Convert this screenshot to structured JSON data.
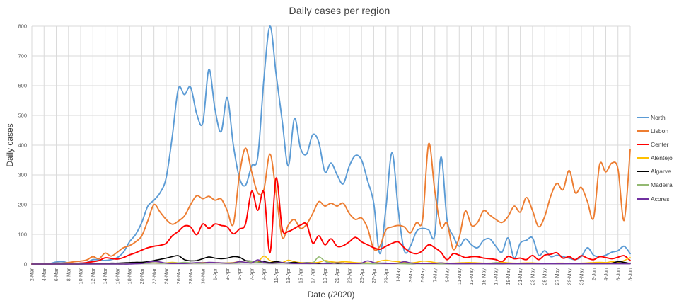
{
  "chart_data": {
    "type": "line",
    "title": "Daily cases per region",
    "xlabel": "Date (/2020)",
    "ylabel": "Daily cases",
    "ylim": [
      0,
      800
    ],
    "y_ticks": [
      0,
      100,
      200,
      300,
      400,
      500,
      600,
      700,
      800
    ],
    "grid": "both",
    "legend_position": "right",
    "x_tick_labels": [
      "2-Mar",
      "4-Mar",
      "6-Mar",
      "8-Mar",
      "10-Mar",
      "12-Mar",
      "14-Mar",
      "16-Mar",
      "18-Mar",
      "20-Mar",
      "22-Mar",
      "24-Mar",
      "26-Mar",
      "28-Mar",
      "30-Mar",
      "1-Apr",
      "3-Apr",
      "5-Apr",
      "7-Apr",
      "9-Apr",
      "11-Apr",
      "13-Apr",
      "15-Apr",
      "17-Apr",
      "19-Apr",
      "21-Apr",
      "23-Apr",
      "25-Apr",
      "27-Apr",
      "29-Apr",
      "1-May",
      "3-May",
      "5-May",
      "7-May",
      "9-May",
      "11-May",
      "13-May",
      "15-May",
      "17-May",
      "19-May",
      "21-May",
      "23-May",
      "25-May",
      "27-May",
      "29-May",
      "31-May",
      "2-Jun",
      "4-Jun",
      "6-Jun",
      "8-Jun"
    ],
    "x_note": "one data point per day from 2-Mar-2020 to 8-Jun-2020 (99 points), axis labels every 2 days",
    "series": [
      {
        "name": "North",
        "color": "#5B9BD5",
        "values": [
          0,
          0,
          1,
          2,
          7,
          8,
          4,
          2,
          3,
          5,
          15,
          14,
          12,
          15,
          22,
          40,
          75,
          100,
          140,
          195,
          215,
          240,
          290,
          430,
          590,
          570,
          595,
          505,
          475,
          655,
          520,
          445,
          560,
          400,
          290,
          265,
          330,
          360,
          620,
          800,
          640,
          483,
          330,
          490,
          390,
          370,
          435,
          410,
          310,
          340,
          300,
          270,
          330,
          365,
          350,
          280,
          205,
          35,
          190,
          375,
          185,
          45,
          60,
          110,
          120,
          115,
          100,
          360,
          150,
          95,
          60,
          85,
          65,
          55,
          80,
          85,
          60,
          40,
          88,
          20,
          70,
          80,
          88,
          30,
          45,
          25,
          30,
          25,
          20,
          15,
          25,
          55,
          30,
          25,
          30,
          40,
          45,
          60,
          35
        ]
      },
      {
        "name": "Lisbon",
        "color": "#ED7D31",
        "values": [
          0,
          0,
          1,
          2,
          3,
          3,
          5,
          8,
          10,
          14,
          25,
          18,
          37,
          27,
          40,
          55,
          62,
          75,
          95,
          146,
          200,
          175,
          150,
          134,
          145,
          162,
          200,
          230,
          220,
          228,
          215,
          219,
          180,
          134,
          300,
          390,
          310,
          240,
          250,
          370,
          240,
          90,
          131,
          150,
          120,
          134,
          170,
          210,
          195,
          205,
          195,
          205,
          170,
          150,
          155,
          120,
          51,
          60,
          115,
          125,
          130,
          125,
          105,
          140,
          150,
          405,
          245,
          126,
          138,
          50,
          90,
          178,
          130,
          140,
          180,
          165,
          150,
          140,
          160,
          195,
          175,
          224,
          180,
          126,
          160,
          230,
          272,
          250,
          315,
          240,
          258,
          210,
          155,
          335,
          310,
          340,
          320,
          147,
          385
        ]
      },
      {
        "name": "Center",
        "color": "#FF0000",
        "values": [
          0,
          0,
          0,
          0,
          1,
          1,
          1,
          2,
          3,
          5,
          8,
          12,
          21,
          19,
          17,
          22,
          31,
          38,
          47,
          55,
          60,
          63,
          70,
          95,
          110,
          128,
          125,
          99,
          135,
          120,
          135,
          130,
          125,
          102,
          118,
          135,
          245,
          181,
          242,
          38,
          289,
          119,
          110,
          120,
          131,
          134,
          71,
          95,
          65,
          85,
          60,
          62,
          75,
          90,
          75,
          65,
          55,
          50,
          60,
          70,
          75,
          55,
          40,
          35,
          45,
          65,
          55,
          40,
          15,
          35,
          30,
          22,
          25,
          25,
          20,
          18,
          15,
          8,
          26,
          18,
          20,
          15,
          29,
          15,
          30,
          33,
          38,
          20,
          25,
          15,
          28,
          20,
          15,
          25,
          22,
          18,
          23,
          28,
          12
        ]
      },
      {
        "name": "Alentejo",
        "color": "#FFC000",
        "values": [
          0,
          0,
          0,
          0,
          0,
          0,
          0,
          0,
          1,
          1,
          1,
          2,
          2,
          2,
          2,
          3,
          3,
          4,
          5,
          5,
          4,
          3,
          4,
          6,
          4,
          3,
          3,
          4,
          5,
          5,
          5,
          4,
          4,
          5,
          8,
          6,
          5,
          6,
          27,
          12,
          6,
          5,
          13,
          8,
          5,
          4,
          5,
          6,
          12,
          8,
          6,
          8,
          7,
          5,
          4,
          4,
          3,
          10,
          13,
          10,
          8,
          5,
          4,
          6,
          10,
          9,
          5,
          4,
          3,
          3,
          4,
          5,
          5,
          4,
          3,
          3,
          4,
          6,
          4,
          3,
          3,
          4,
          4,
          3,
          2,
          2,
          3,
          3,
          2,
          2,
          3,
          4,
          5,
          6,
          5,
          8,
          6,
          12,
          22
        ]
      },
      {
        "name": "Algarve",
        "color": "#000000",
        "values": [
          0,
          0,
          0,
          0,
          0,
          0,
          0,
          0,
          0,
          1,
          1,
          2,
          2,
          3,
          3,
          4,
          5,
          6,
          6,
          8,
          12,
          16,
          20,
          25,
          28,
          15,
          11,
          12,
          18,
          24,
          20,
          18,
          20,
          25,
          23,
          12,
          10,
          6,
          8,
          5,
          8,
          5,
          4,
          6,
          3,
          4,
          3,
          2,
          3,
          4,
          2,
          3,
          2,
          2,
          3,
          2,
          2,
          3,
          3,
          2,
          2,
          2,
          1,
          2,
          2,
          3,
          2,
          1,
          1,
          2,
          1,
          1,
          2,
          1,
          1,
          1,
          1,
          1,
          2,
          1,
          1,
          1,
          2,
          1,
          1,
          2,
          1,
          1,
          2,
          1,
          1,
          2,
          1,
          2,
          2,
          3,
          8,
          6,
          2
        ]
      },
      {
        "name": "Madeira",
        "color": "#93B972",
        "values": [
          0,
          0,
          0,
          0,
          0,
          0,
          0,
          0,
          0,
          0,
          0,
          0,
          0,
          0,
          0,
          0,
          1,
          1,
          2,
          3,
          4,
          3,
          3,
          4,
          4,
          6,
          4,
          3,
          3,
          4,
          4,
          4,
          3,
          3,
          4,
          5,
          8,
          5,
          4,
          3,
          3,
          4,
          3,
          3,
          2,
          2,
          3,
          24,
          10,
          4,
          3,
          3,
          2,
          2,
          2,
          2,
          1,
          2,
          2,
          2,
          2,
          1,
          1,
          2,
          1,
          1,
          1,
          1,
          1,
          1,
          1,
          1,
          1,
          1,
          1,
          2,
          5,
          3,
          1,
          1,
          1,
          1,
          1,
          1,
          1,
          1,
          1,
          1,
          1,
          1,
          1,
          1,
          1,
          1,
          1,
          2,
          3,
          2,
          1
        ]
      },
      {
        "name": "Acores",
        "color": "#7030A0",
        "values": [
          0,
          0,
          0,
          0,
          0,
          0,
          0,
          0,
          0,
          0,
          0,
          0,
          0,
          0,
          0,
          0,
          0,
          1,
          2,
          6,
          9,
          7,
          3,
          2,
          2,
          2,
          3,
          5,
          4,
          6,
          5,
          4,
          3,
          4,
          8,
          6,
          4,
          14,
          6,
          3,
          4,
          5,
          3,
          2,
          2,
          2,
          2,
          3,
          2,
          2,
          4,
          3,
          2,
          2,
          3,
          11,
          5,
          3,
          2,
          2,
          3,
          8,
          4,
          2,
          2,
          2,
          2,
          4,
          2,
          1,
          1,
          1,
          1,
          1,
          1,
          1,
          1,
          1,
          1,
          1,
          1,
          1,
          1,
          1,
          1,
          1,
          1,
          1,
          1,
          1,
          1,
          1,
          1,
          1,
          1,
          1,
          1,
          1,
          1
        ]
      }
    ]
  }
}
